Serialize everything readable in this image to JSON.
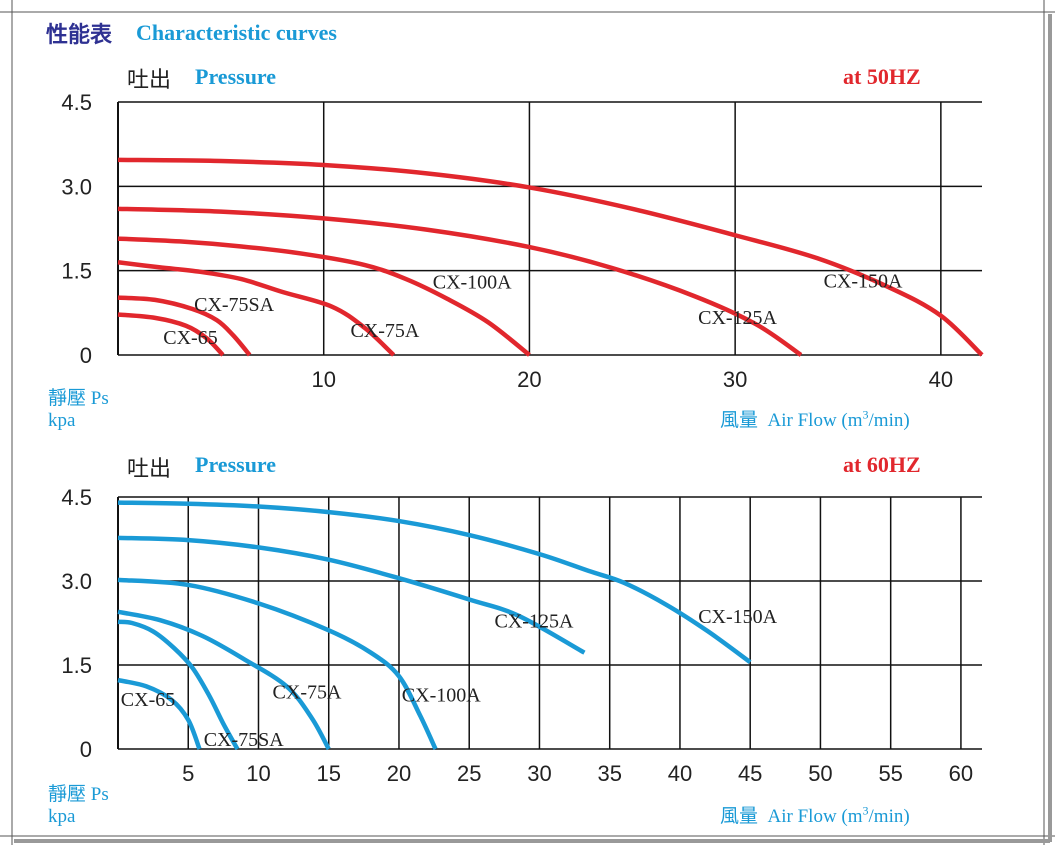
{
  "header": {
    "title_cjk": "性能表",
    "title_en": "Characteristic curves"
  },
  "colors": {
    "curve_50hz": "#e1272d",
    "curve_60hz": "#1a9ad6",
    "grid": "#111111",
    "accent_blue": "#1a9ad6",
    "title_navy": "#2e3192"
  },
  "chart_data": [
    {
      "type": "line",
      "title": "at 50HZ",
      "ylabel_cjk": "吐出",
      "ylabel_en": "Pressure",
      "ylabel2_cjk": "靜壓",
      "ylabel2_en": "Ps",
      "yunit": "kpa",
      "xlabel_cjk": "風量",
      "xlabel_en": "Air Flow (m",
      "xlabel_sup": "3",
      "xlabel_tail": "/min)",
      "xlim": [
        0,
        42
      ],
      "ylim": [
        0,
        4.5
      ],
      "xticks": [
        10,
        20,
        30,
        40
      ],
      "yticks": [
        0,
        1.5,
        3.0,
        4.5
      ],
      "ytick_labels": [
        "0",
        "1.5",
        "3.0",
        "4.5"
      ],
      "grid": true,
      "series": [
        {
          "name": "CX-65",
          "label_at": [
            2.2,
            0.2
          ],
          "points": [
            [
              0,
              0.72
            ],
            [
              1.8,
              0.66
            ],
            [
              3.3,
              0.52
            ],
            [
              4.3,
              0.3
            ],
            [
              5.1,
              0
            ]
          ]
        },
        {
          "name": "CX-75SA",
          "label_at": [
            3.7,
            0.78
          ],
          "points": [
            [
              0,
              1.02
            ],
            [
              1.8,
              0.98
            ],
            [
              3.6,
              0.82
            ],
            [
              4.8,
              0.62
            ],
            [
              5.6,
              0.35
            ],
            [
              6.4,
              0
            ]
          ]
        },
        {
          "name": "CX-75A",
          "label_at": [
            11.3,
            0.32
          ],
          "points": [
            [
              0,
              1.65
            ],
            [
              2,
              1.56
            ],
            [
              4,
              1.48
            ],
            [
              6,
              1.35
            ],
            [
              8,
              1.12
            ],
            [
              10.4,
              0.86
            ],
            [
              12,
              0.48
            ],
            [
              13.4,
              0
            ]
          ]
        },
        {
          "name": "CX-100A",
          "label_at": [
            15.3,
            1.18
          ],
          "points": [
            [
              0,
              2.07
            ],
            [
              3,
              2.02
            ],
            [
              6,
              1.93
            ],
            [
              9,
              1.8
            ],
            [
              12,
              1.6
            ],
            [
              14,
              1.35
            ],
            [
              16,
              1.0
            ],
            [
              18,
              0.58
            ],
            [
              20,
              0
            ]
          ]
        },
        {
          "name": "CX-125A",
          "label_at": [
            28.2,
            0.55
          ],
          "points": [
            [
              0,
              2.6
            ],
            [
              5,
              2.55
            ],
            [
              10,
              2.43
            ],
            [
              15,
              2.23
            ],
            [
              20,
              1.92
            ],
            [
              24,
              1.55
            ],
            [
              28,
              1.05
            ],
            [
              31,
              0.55
            ],
            [
              33.2,
              0
            ]
          ]
        },
        {
          "name": "CX-150A",
          "label_at": [
            34.3,
            1.2
          ],
          "points": [
            [
              0,
              3.47
            ],
            [
              5,
              3.45
            ],
            [
              10,
              3.38
            ],
            [
              15,
              3.23
            ],
            [
              20,
              2.98
            ],
            [
              25,
              2.6
            ],
            [
              30,
              2.13
            ],
            [
              34,
              1.72
            ],
            [
              37.5,
              1.2
            ],
            [
              40,
              0.7
            ],
            [
              42,
              0
            ]
          ]
        }
      ]
    },
    {
      "type": "line",
      "title": "at 60HZ",
      "ylabel_cjk": "吐出",
      "ylabel_en": "Pressure",
      "ylabel2_cjk": "靜壓",
      "ylabel2_en": "Ps",
      "yunit": "kpa",
      "xlabel_cjk": "風量",
      "xlabel_en": "Air Flow (m",
      "xlabel_sup": "3",
      "xlabel_tail": "/min)",
      "xlim": [
        0,
        61.5
      ],
      "ylim": [
        0,
        4.5
      ],
      "xticks": [
        5,
        10,
        15,
        20,
        25,
        30,
        35,
        40,
        45,
        50,
        55,
        60
      ],
      "yticks": [
        0,
        1.5,
        3.0,
        4.5
      ],
      "ytick_labels": [
        "0",
        "1.5",
        "3.0",
        "4.5"
      ],
      "grid": true,
      "series": [
        {
          "name": "CX-65",
          "label_at": [
            0.2,
            0.77
          ],
          "points": [
            [
              0,
              1.23
            ],
            [
              2,
              1.12
            ],
            [
              3.8,
              0.88
            ],
            [
              5,
              0.52
            ],
            [
              5.8,
              0
            ]
          ]
        },
        {
          "name": "CX-75SA",
          "label_at": [
            6.1,
            0.05
          ],
          "points": [
            [
              0,
              2.27
            ],
            [
              1,
              2.25
            ],
            [
              2.5,
              2.1
            ],
            [
              4,
              1.8
            ],
            [
              5.3,
              1.45
            ],
            [
              6.5,
              0.95
            ],
            [
              7.5,
              0.45
            ],
            [
              8.5,
              0
            ]
          ]
        },
        {
          "name": "CX-75A",
          "label_at": [
            11.0,
            0.9
          ],
          "points": [
            [
              0,
              2.45
            ],
            [
              3,
              2.3
            ],
            [
              6,
              2.02
            ],
            [
              9,
              1.6
            ],
            [
              12,
              1.12
            ],
            [
              13.8,
              0.55
            ],
            [
              15,
              0
            ]
          ]
        },
        {
          "name": "CX-100A",
          "label_at": [
            20.2,
            0.85
          ],
          "points": [
            [
              0,
              3.02
            ],
            [
              5,
              2.93
            ],
            [
              10,
              2.6
            ],
            [
              15,
              2.12
            ],
            [
              18,
              1.72
            ],
            [
              20,
              1.3
            ],
            [
              21.5,
              0.6
            ],
            [
              22.6,
              0
            ]
          ]
        },
        {
          "name": "CX-125A",
          "label_at": [
            26.8,
            2.17
          ],
          "points": [
            [
              0,
              3.77
            ],
            [
              5,
              3.73
            ],
            [
              10,
              3.6
            ],
            [
              15,
              3.38
            ],
            [
              20,
              3.05
            ],
            [
              25,
              2.67
            ],
            [
              28.5,
              2.38
            ],
            [
              33.2,
              1.72
            ]
          ]
        },
        {
          "name": "CX-150A",
          "label_at": [
            41.3,
            2.25
          ],
          "points": [
            [
              0,
              4.4
            ],
            [
              5,
              4.38
            ],
            [
              10,
              4.33
            ],
            [
              15,
              4.23
            ],
            [
              20,
              4.07
            ],
            [
              25,
              3.82
            ],
            [
              30,
              3.48
            ],
            [
              33.5,
              3.18
            ],
            [
              36,
              2.97
            ],
            [
              39,
              2.58
            ],
            [
              42,
              2.1
            ],
            [
              45,
              1.55
            ]
          ]
        }
      ]
    }
  ]
}
